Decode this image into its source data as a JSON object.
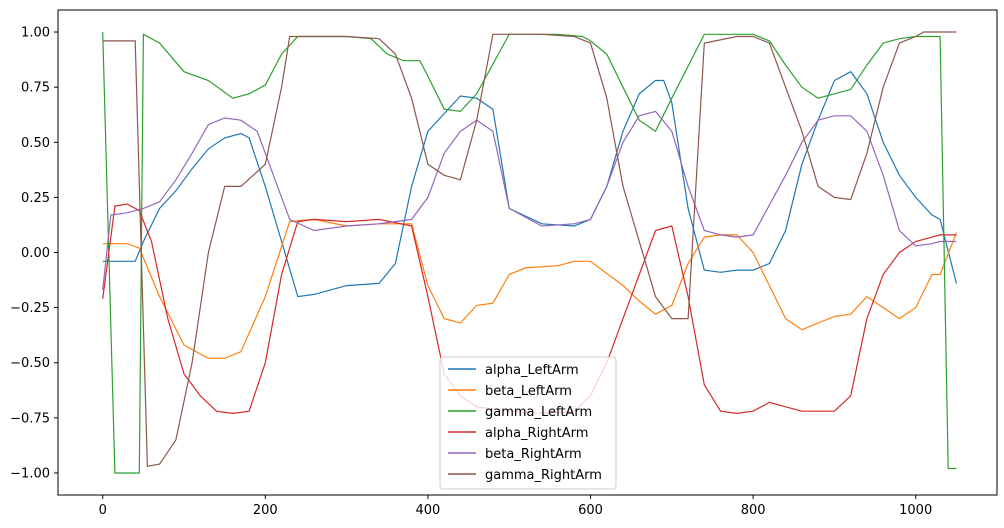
{
  "chart_data": {
    "type": "line",
    "title": "",
    "xlabel": "",
    "ylabel": "",
    "xlim": [
      -55,
      1100
    ],
    "ylim": [
      -1.1,
      1.1
    ],
    "xticks": [
      0,
      200,
      400,
      600,
      800,
      1000
    ],
    "yticks": [
      1.0,
      0.75,
      0.5,
      0.25,
      0.0,
      -0.25,
      -0.5,
      -0.75,
      -1.0
    ],
    "xtick_labels": [
      "0",
      "200",
      "400",
      "600",
      "800",
      "1000"
    ],
    "ytick_labels": [
      "1.00",
      "0.75",
      "0.50",
      "0.25",
      "0.00",
      "−0.25",
      "−0.50",
      "−0.75",
      "−1.00"
    ],
    "grid": false,
    "legend_position": "bottom-center",
    "series": [
      {
        "name": "alpha_LeftArm",
        "color": "#1f77b4",
        "x": [
          0,
          20,
          40,
          50,
          70,
          90,
          110,
          130,
          150,
          170,
          180,
          200,
          220,
          240,
          260,
          300,
          340,
          360,
          380,
          400,
          420,
          440,
          460,
          480,
          500,
          540,
          580,
          600,
          620,
          640,
          660,
          680,
          690,
          700,
          720,
          740,
          760,
          780,
          800,
          820,
          840,
          860,
          880,
          900,
          920,
          940,
          960,
          980,
          1000,
          1020,
          1030,
          1050
        ],
        "y": [
          -0.04,
          -0.04,
          -0.04,
          0.05,
          0.2,
          0.28,
          0.38,
          0.47,
          0.52,
          0.54,
          0.52,
          0.3,
          0.05,
          -0.2,
          -0.19,
          -0.15,
          -0.14,
          -0.05,
          0.3,
          0.55,
          0.63,
          0.71,
          0.7,
          0.65,
          0.2,
          0.13,
          0.12,
          0.15,
          0.3,
          0.55,
          0.72,
          0.78,
          0.78,
          0.68,
          0.2,
          -0.08,
          -0.09,
          -0.08,
          -0.08,
          -0.05,
          0.1,
          0.4,
          0.6,
          0.78,
          0.82,
          0.72,
          0.5,
          0.35,
          0.25,
          0.17,
          0.15,
          -0.14
        ]
      },
      {
        "name": "beta_LeftArm",
        "color": "#ff7f0e",
        "x": [
          0,
          30,
          45,
          70,
          100,
          130,
          150,
          170,
          200,
          230,
          260,
          300,
          340,
          380,
          400,
          420,
          440,
          460,
          480,
          500,
          520,
          560,
          580,
          600,
          640,
          660,
          680,
          700,
          720,
          740,
          760,
          780,
          800,
          840,
          860,
          880,
          900,
          920,
          940,
          960,
          980,
          1000,
          1020,
          1030,
          1050
        ],
        "y": [
          0.04,
          0.04,
          0.02,
          -0.2,
          -0.42,
          -0.48,
          -0.48,
          -0.45,
          -0.2,
          0.14,
          0.15,
          0.12,
          0.13,
          0.13,
          -0.15,
          -0.3,
          -0.32,
          -0.24,
          -0.23,
          -0.1,
          -0.07,
          -0.06,
          -0.04,
          -0.04,
          -0.15,
          -0.22,
          -0.28,
          -0.24,
          -0.05,
          0.07,
          0.08,
          0.08,
          0.0,
          -0.3,
          -0.35,
          -0.32,
          -0.29,
          -0.28,
          -0.2,
          -0.25,
          -0.3,
          -0.25,
          -0.1,
          -0.1,
          0.09
        ]
      },
      {
        "name": "gamma_LeftArm",
        "color": "#2ca02c",
        "x": [
          0,
          15,
          30,
          45,
          50,
          70,
          100,
          130,
          160,
          180,
          200,
          220,
          240,
          260,
          300,
          330,
          350,
          370,
          390,
          400,
          420,
          440,
          460,
          500,
          520,
          560,
          590,
          600,
          620,
          640,
          660,
          680,
          700,
          740,
          780,
          800,
          820,
          840,
          860,
          880,
          900,
          920,
          940,
          960,
          980,
          1000,
          1020,
          1030,
          1040,
          1050
        ],
        "y": [
          1.0,
          -1.0,
          -1.0,
          -1.0,
          0.99,
          0.95,
          0.82,
          0.78,
          0.7,
          0.72,
          0.76,
          0.9,
          0.98,
          0.98,
          0.98,
          0.97,
          0.9,
          0.87,
          0.87,
          0.8,
          0.65,
          0.64,
          0.72,
          0.99,
          0.99,
          0.99,
          0.98,
          0.96,
          0.9,
          0.75,
          0.6,
          0.55,
          0.7,
          0.99,
          0.99,
          0.99,
          0.96,
          0.85,
          0.75,
          0.7,
          0.72,
          0.74,
          0.85,
          0.95,
          0.97,
          0.98,
          0.98,
          0.98,
          -0.98,
          -0.98
        ]
      },
      {
        "name": "alpha_RightArm",
        "color": "#d62728",
        "x": [
          0,
          15,
          30,
          45,
          60,
          80,
          100,
          120,
          140,
          160,
          180,
          200,
          220,
          240,
          260,
          300,
          340,
          380,
          400,
          420,
          440,
          460,
          500,
          540,
          580,
          600,
          620,
          640,
          660,
          680,
          700,
          720,
          740,
          760,
          780,
          800,
          820,
          840,
          860,
          880,
          900,
          920,
          940,
          960,
          980,
          1000,
          1020,
          1030,
          1050
        ],
        "y": [
          -0.21,
          0.21,
          0.22,
          0.19,
          0.05,
          -0.3,
          -0.55,
          -0.65,
          -0.72,
          -0.73,
          -0.72,
          -0.5,
          -0.1,
          0.14,
          0.15,
          0.14,
          0.15,
          0.12,
          -0.2,
          -0.55,
          -0.65,
          -0.7,
          -0.72,
          -0.73,
          -0.72,
          -0.65,
          -0.5,
          -0.3,
          -0.1,
          0.1,
          0.12,
          -0.2,
          -0.6,
          -0.72,
          -0.73,
          -0.72,
          -0.68,
          -0.7,
          -0.72,
          -0.72,
          -0.72,
          -0.65,
          -0.3,
          -0.1,
          0.0,
          0.05,
          0.07,
          0.08,
          0.08
        ]
      },
      {
        "name": "beta_RightArm",
        "color": "#9467bd",
        "x": [
          0,
          10,
          30,
          50,
          70,
          90,
          110,
          130,
          150,
          170,
          190,
          210,
          230,
          260,
          300,
          340,
          380,
          400,
          420,
          440,
          460,
          480,
          500,
          540,
          580,
          600,
          620,
          640,
          660,
          680,
          700,
          720,
          740,
          760,
          780,
          800,
          840,
          860,
          880,
          900,
          920,
          940,
          960,
          980,
          1000,
          1020,
          1030,
          1050
        ],
        "y": [
          -0.17,
          0.17,
          0.18,
          0.2,
          0.23,
          0.33,
          0.45,
          0.58,
          0.61,
          0.6,
          0.55,
          0.35,
          0.15,
          0.1,
          0.12,
          0.13,
          0.15,
          0.25,
          0.45,
          0.55,
          0.6,
          0.55,
          0.2,
          0.12,
          0.13,
          0.15,
          0.3,
          0.5,
          0.62,
          0.64,
          0.55,
          0.3,
          0.1,
          0.08,
          0.07,
          0.08,
          0.35,
          0.5,
          0.6,
          0.62,
          0.62,
          0.55,
          0.35,
          0.1,
          0.03,
          0.04,
          0.05,
          0.05
        ]
      },
      {
        "name": "gamma_RightArm",
        "color": "#8c564b",
        "x": [
          0,
          20,
          40,
          55,
          70,
          90,
          110,
          130,
          150,
          170,
          200,
          220,
          230,
          260,
          300,
          340,
          360,
          380,
          400,
          420,
          440,
          460,
          480,
          500,
          540,
          580,
          600,
          620,
          640,
          660,
          680,
          700,
          720,
          740,
          780,
          800,
          820,
          840,
          860,
          880,
          900,
          920,
          940,
          960,
          980,
          1000,
          1010,
          1030,
          1050
        ],
        "y": [
          0.96,
          0.96,
          0.96,
          -0.97,
          -0.96,
          -0.85,
          -0.5,
          0.0,
          0.3,
          0.3,
          0.4,
          0.75,
          0.98,
          0.98,
          0.98,
          0.97,
          0.9,
          0.7,
          0.4,
          0.35,
          0.33,
          0.6,
          0.99,
          0.99,
          0.99,
          0.98,
          0.95,
          0.7,
          0.3,
          0.05,
          -0.2,
          -0.3,
          -0.3,
          0.95,
          0.98,
          0.98,
          0.95,
          0.75,
          0.55,
          0.3,
          0.25,
          0.24,
          0.45,
          0.75,
          0.95,
          0.98,
          1.0,
          1.0,
          1.0
        ]
      }
    ]
  }
}
